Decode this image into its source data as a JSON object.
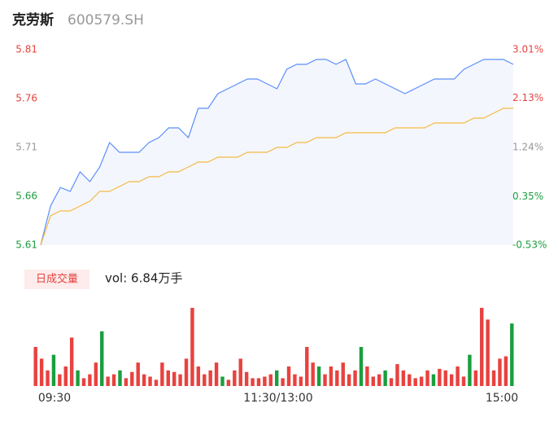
{
  "chart_data": {
    "type": "intraday",
    "title": "克劳斯",
    "subtitle": "600579.SH",
    "x": [
      0,
      5,
      10,
      15,
      20,
      25,
      30,
      35,
      40,
      45,
      50,
      55,
      60,
      65,
      70,
      75,
      80,
      85,
      90,
      95,
      100,
      105,
      110,
      115,
      120,
      125,
      130,
      135,
      140,
      145,
      150,
      155,
      160,
      165,
      170,
      175,
      180,
      185,
      190,
      195,
      200,
      205,
      210,
      215,
      220,
      225,
      230,
      235,
      240
    ],
    "series": [
      {
        "color": "#5b8ff9",
        "values": [
          5.61,
          5.65,
          5.669,
          5.665,
          5.685,
          5.675,
          5.69,
          5.715,
          5.705,
          5.705,
          5.705,
          5.715,
          5.72,
          5.73,
          5.73,
          5.72,
          5.75,
          5.75,
          5.765,
          5.77,
          5.775,
          5.78,
          5.78,
          5.775,
          5.77,
          5.79,
          5.795,
          5.795,
          5.8,
          5.8,
          5.795,
          5.8,
          5.775,
          5.775,
          5.78,
          5.775,
          5.77,
          5.765,
          5.77,
          5.775,
          5.78,
          5.78,
          5.78,
          5.79,
          5.795,
          5.8,
          5.8,
          5.8,
          5.795
        ]
      },
      {
        "color": "#f5b942",
        "values": [
          5.61,
          5.64,
          5.645,
          5.645,
          5.65,
          5.655,
          5.665,
          5.665,
          5.67,
          5.675,
          5.675,
          5.68,
          5.68,
          5.685,
          5.685,
          5.69,
          5.695,
          5.695,
          5.7,
          5.7,
          5.7,
          5.705,
          5.705,
          5.705,
          5.71,
          5.71,
          5.715,
          5.715,
          5.72,
          5.72,
          5.72,
          5.725,
          5.725,
          5.725,
          5.725,
          5.725,
          5.73,
          5.73,
          5.73,
          5.73,
          5.735,
          5.735,
          5.735,
          5.735,
          5.74,
          5.74,
          5.745,
          5.75,
          5.75
        ]
      }
    ],
    "xlim": [
      0,
      240
    ],
    "xticks": [
      {
        "value": 0,
        "label": "09:30"
      },
      {
        "value": 120,
        "label": "11:30/13:00"
      },
      {
        "value": 240,
        "label": "15:00"
      }
    ],
    "ylim": [
      5.61,
      5.81
    ],
    "yticks": [
      5.61,
      5.66,
      5.71,
      5.76,
      5.81
    ],
    "y2lim": [
      -0.53,
      3.01
    ],
    "y2ticks": [
      {
        "value": -0.53,
        "label": "-0.53%"
      },
      {
        "value": 0.35,
        "label": "0.35%"
      },
      {
        "value": 1.24,
        "label": "1.24%"
      },
      {
        "value": 2.13,
        "label": "2.13%"
      },
      {
        "value": 3.01,
        "label": "3.01%"
      }
    ],
    "up_color": "#e8423f",
    "down_color": "#1a9e3f",
    "flat_color": "#999999",
    "volume": {
      "button": "日成交量",
      "label": "vol: 6.84万手",
      "ylim": [
        0,
        100
      ],
      "values": [
        50,
        35,
        20,
        40,
        15,
        25,
        62,
        20,
        10,
        15,
        30,
        70,
        12,
        15,
        20,
        10,
        18,
        30,
        15,
        12,
        8,
        30,
        20,
        18,
        15,
        35,
        100,
        25,
        15,
        20,
        30,
        12,
        8,
        20,
        35,
        18,
        10,
        10,
        12,
        15,
        20,
        10,
        25,
        15,
        12,
        50,
        30,
        25,
        15,
        25,
        20,
        30,
        15,
        20,
        50,
        25,
        12,
        15,
        20,
        10,
        28,
        20,
        15,
        10,
        12,
        20,
        15,
        22,
        20,
        15,
        25,
        12,
        40,
        20,
        100,
        85,
        20,
        35,
        38,
        80
      ],
      "down_indices": [
        3,
        7,
        11,
        14,
        31,
        40,
        47,
        54,
        58,
        66,
        72,
        79
      ]
    }
  }
}
